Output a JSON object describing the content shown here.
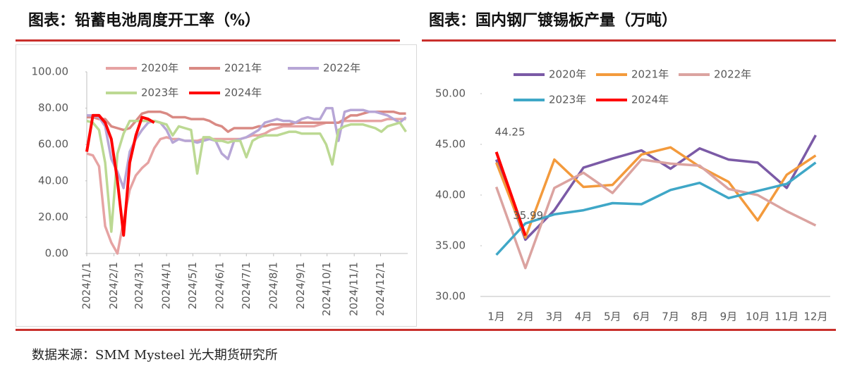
{
  "chart_data": [
    {
      "type": "line",
      "title": "图表：铅蓄电池周度开工率（%）",
      "legend": "top",
      "x": [
        0,
        7,
        14,
        21,
        28,
        35,
        42,
        49,
        56,
        63,
        70,
        77,
        84,
        91,
        98,
        105,
        112,
        119,
        126,
        133,
        140,
        147,
        154,
        161,
        168,
        175,
        182,
        189,
        196,
        203,
        210,
        217,
        224,
        231,
        238,
        245,
        252,
        259,
        266,
        273,
        280,
        287,
        294,
        301,
        308,
        315,
        322,
        329,
        336,
        343,
        350,
        357,
        364
      ],
      "xlim": [
        0,
        366
      ],
      "xticks": [
        {
          "value": 0,
          "label": "2024/1/1"
        },
        {
          "value": 31,
          "label": "2024/2/1"
        },
        {
          "value": 60,
          "label": "2024/3/1"
        },
        {
          "value": 91,
          "label": "2024/4/1"
        },
        {
          "value": 121,
          "label": "2024/5/1"
        },
        {
          "value": 152,
          "label": "2024/6/1"
        },
        {
          "value": 182,
          "label": "2024/7/1"
        },
        {
          "value": 213,
          "label": "2024/8/1"
        },
        {
          "value": 244,
          "label": "2024/9/1"
        },
        {
          "value": 274,
          "label": "2024/10/1"
        },
        {
          "value": 305,
          "label": "2024/11/1"
        },
        {
          "value": 335,
          "label": "2024/12/1"
        }
      ],
      "ylim": [
        0,
        100
      ],
      "yticks": [
        {
          "value": 0,
          "label": "0.00"
        },
        {
          "value": 20,
          "label": "20.00"
        },
        {
          "value": 40,
          "label": "40.00"
        },
        {
          "value": 60,
          "label": "60.00"
        },
        {
          "value": 80,
          "label": "80.00"
        },
        {
          "value": 100,
          "label": "100.00"
        }
      ],
      "series": [
        {
          "name": "2020年",
          "color": "#e6a3a3",
          "values": [
            55,
            54,
            48,
            15,
            6,
            0,
            18,
            35,
            43,
            47,
            50,
            58,
            63,
            64,
            63,
            63,
            62,
            62,
            62,
            63,
            63,
            63,
            63,
            63,
            63,
            63,
            64,
            65,
            65,
            66,
            68,
            69,
            70,
            70,
            70,
            70,
            70,
            70,
            71,
            72,
            72,
            72,
            73,
            73,
            73,
            73,
            73,
            73,
            73,
            74,
            74,
            74,
            74
          ]
        },
        {
          "name": "2021年",
          "color": "#d98a84",
          "values": [
            75,
            75,
            74,
            74,
            70,
            69,
            68,
            69,
            73,
            77,
            78,
            78,
            78,
            77,
            75,
            75,
            75,
            74,
            74,
            74,
            73,
            71,
            70,
            67,
            69,
            69,
            69,
            69,
            70,
            70,
            71,
            71,
            71,
            71,
            72,
            72,
            72,
            72,
            72,
            72,
            72,
            72,
            74,
            76,
            76,
            77,
            78,
            78,
            78,
            78,
            78,
            77,
            77
          ]
        },
        {
          "name": "2022年",
          "color": "#b7a6d6",
          "values": [
            76,
            76,
            75,
            70,
            52,
            45,
            36,
            56,
            63,
            68,
            72,
            73,
            72,
            68,
            61,
            63,
            62,
            62,
            61,
            62,
            63,
            62,
            55,
            52,
            62,
            63,
            64,
            66,
            68,
            72,
            73,
            74,
            73,
            73,
            72,
            74,
            75,
            74,
            74,
            80,
            80,
            62,
            78,
            79,
            79,
            79,
            78,
            78,
            77,
            76,
            74,
            72,
            75
          ]
        },
        {
          "name": "2023年",
          "color": "#bcd993",
          "values": [
            73,
            72,
            68,
            50,
            12,
            55,
            66,
            73,
            73,
            73,
            73,
            73,
            72,
            71,
            65,
            70,
            69,
            68,
            44,
            64,
            64,
            62,
            62,
            61,
            62,
            62,
            53,
            62,
            64,
            65,
            65,
            65,
            66,
            67,
            67,
            66,
            66,
            66,
            66,
            60,
            49,
            68,
            70,
            71,
            71,
            71,
            70,
            69,
            67,
            70,
            71,
            72,
            67
          ]
        },
        {
          "name": "2024年",
          "color": "#ff0000",
          "values": [
            56,
            76,
            76,
            72,
            63,
            40,
            10,
            50,
            65,
            75,
            74,
            72,
            null,
            null,
            null,
            null,
            null,
            null,
            null,
            null,
            null,
            null,
            null,
            null,
            null,
            null,
            null,
            null,
            null,
            null,
            null,
            null,
            null,
            null,
            null,
            null,
            null,
            null,
            null,
            null,
            null,
            null,
            null,
            null,
            null,
            null,
            null,
            null,
            null,
            null,
            null,
            null,
            null
          ]
        }
      ]
    },
    {
      "type": "line",
      "title": "图表：国内钢厂镀锡板产量（万吨）",
      "legend": "top",
      "categories": [
        "1月",
        "2月",
        "3月",
        "4月",
        "5月",
        "6月",
        "7月",
        "8月",
        "9月",
        "10月",
        "11月",
        "12月"
      ],
      "ylim": [
        30,
        50
      ],
      "yticks": [
        {
          "value": 30,
          "label": "30.00"
        },
        {
          "value": 35,
          "label": "35.00"
        },
        {
          "value": 40,
          "label": "40.00"
        },
        {
          "value": 45,
          "label": "45.00"
        },
        {
          "value": 50,
          "label": "50.00"
        }
      ],
      "series": [
        {
          "name": "2020年",
          "color": "#7b5aa6",
          "values": [
            43.5,
            35.6,
            38.5,
            42.7,
            43.6,
            44.4,
            42.6,
            44.6,
            43.5,
            43.2,
            40.7,
            45.9
          ]
        },
        {
          "name": "2021年",
          "color": "#f39a3c",
          "values": [
            43.2,
            35.8,
            43.5,
            40.8,
            41.0,
            44.0,
            44.7,
            42.8,
            41.3,
            37.5,
            42.0,
            43.9
          ]
        },
        {
          "name": "2022年",
          "color": "#dba3a0",
          "values": [
            40.8,
            32.8,
            40.7,
            42.2,
            40.2,
            43.5,
            43.1,
            42.9,
            40.6,
            40.0,
            38.4,
            37.0
          ]
        },
        {
          "name": "2023年",
          "color": "#3fa7c7",
          "values": [
            34.1,
            37.2,
            38.1,
            38.5,
            39.2,
            39.1,
            40.5,
            41.2,
            39.7,
            40.4,
            41.1,
            43.2
          ]
        },
        {
          "name": "2024年",
          "color": "#ff0000",
          "show_labels": true,
          "values": [
            44.25,
            35.99,
            null,
            null,
            null,
            null,
            null,
            null,
            null,
            null,
            null,
            null
          ]
        }
      ]
    }
  ],
  "source": "数据来源：SMM Mysteel 光大期货研究所"
}
